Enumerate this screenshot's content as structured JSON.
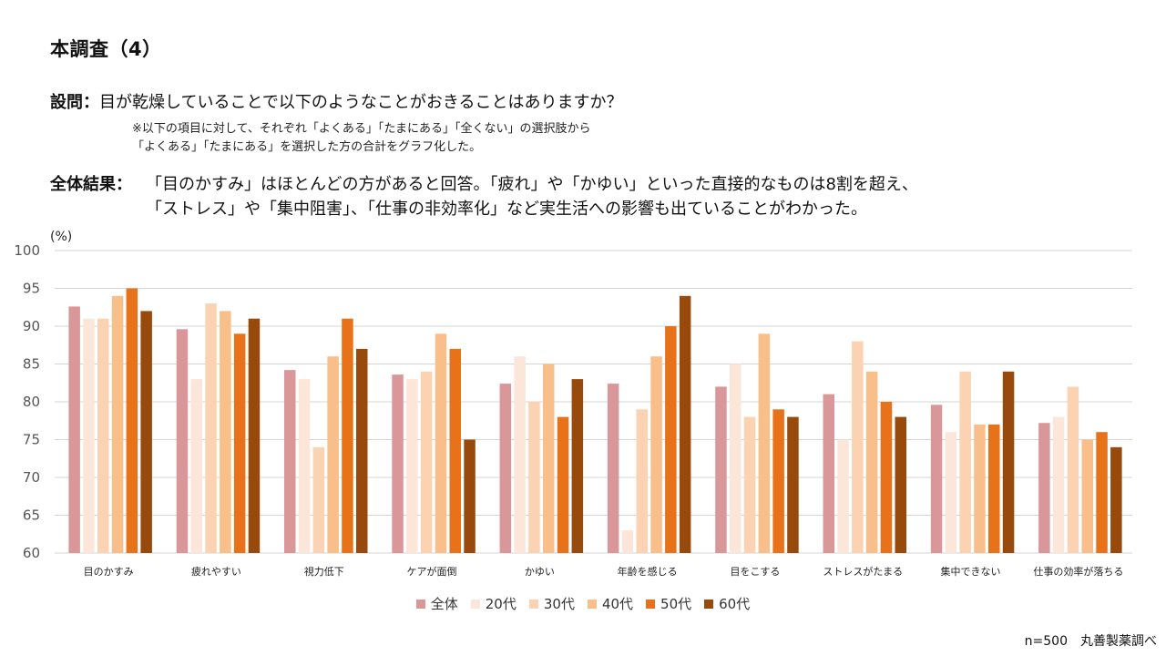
{
  "page": {
    "title": "本調査（4）",
    "question_label": "設問：",
    "question_text": "目が乾燥していることで以下のようなことがおきることはありますか？",
    "note_line1": "※以下の項目に対して、それぞれ「よくある」「たまにある」「全くない」の選択肢から",
    "note_line2": "「よくある」「たまにある」を選択した方の合計をグラフ化した。",
    "result_label": "全体結果：",
    "result_line1": "「目のかすみ」はほとんどの方があると回答。「疲れ」や「かゆい」といった直接的なものは8割を超え、",
    "result_line2": "「ストレス」や「集中阻害」、「仕事の非効率化」など実生活への影響も出ていることがわかった。",
    "unit_label": "(%)",
    "source": "n=500　丸善製薬調べ"
  },
  "chart_data": {
    "type": "bar",
    "ylabel": "(%)",
    "ylim": [
      60,
      100
    ],
    "yticks": [
      60,
      65,
      70,
      75,
      80,
      85,
      90,
      95,
      100
    ],
    "grid": true,
    "legend_position": "bottom",
    "categories": [
      "目のかすみ",
      "疲れやすい",
      "視力低下",
      "ケアが面倒",
      "かゆい",
      "年齢を感じる",
      "目をこする",
      "ストレスがたまる",
      "集中できない",
      "仕事の効率が落ちる"
    ],
    "series": [
      {
        "name": "全体",
        "color": "#d9979a",
        "values": [
          92.6,
          89.6,
          84.2,
          83.6,
          82.4,
          82.4,
          82.0,
          81.0,
          79.6,
          77.2
        ]
      },
      {
        "name": "20代",
        "color": "#fce6d9",
        "values": [
          91,
          83,
          83,
          83,
          86,
          63,
          85,
          75,
          76,
          78
        ]
      },
      {
        "name": "30代",
        "color": "#fbd3b2",
        "values": [
          91,
          93,
          74,
          84,
          80,
          79,
          78,
          88,
          84,
          82
        ]
      },
      {
        "name": "40代",
        "color": "#f8bf8a",
        "values": [
          94,
          92,
          86,
          89,
          85,
          86,
          89,
          84,
          77,
          75
        ]
      },
      {
        "name": "50代",
        "color": "#e8721a",
        "values": [
          95,
          89,
          91,
          87,
          78,
          90,
          79,
          80,
          77,
          76
        ]
      },
      {
        "name": "60代",
        "color": "#974a0c",
        "values": [
          92,
          91,
          87,
          75,
          83,
          94,
          78,
          78,
          84,
          74
        ]
      }
    ]
  }
}
